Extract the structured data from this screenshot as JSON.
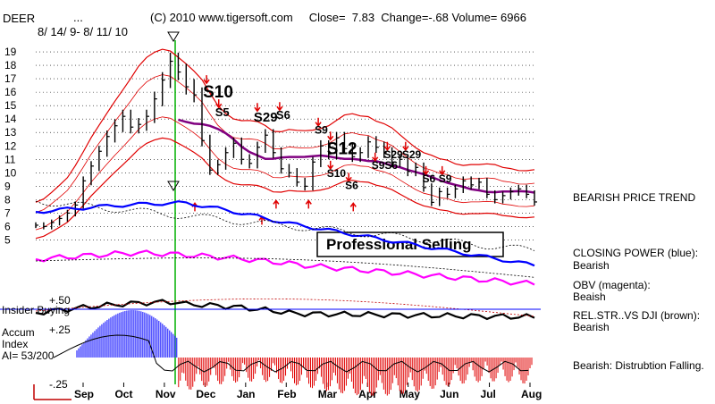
{
  "header": {
    "ticker": "DEER",
    "dots": "...",
    "date_range": "8/ 14/ 9- 8/ 11/ 10",
    "info": "(C) 2010 www.tigersoft.com     Close=  7.83  Change=-.68 Volume= 6966"
  },
  "chart_data": {
    "type": "candlestick",
    "price_axis": {
      "ticks": [
        5,
        6,
        7,
        8,
        9,
        10,
        11,
        12,
        13,
        14,
        15,
        16,
        17,
        18,
        19
      ],
      "ylim": [
        4.5,
        19.8
      ]
    },
    "x_ticks": [
      "Sep",
      "Oct",
      "Nov",
      "Dec",
      "Jan",
      "Feb",
      "Mar",
      "Apr",
      "May",
      "Jun",
      "Jul",
      "Aug"
    ],
    "close_series": [
      6.1,
      6.0,
      6.3,
      6.6,
      7.0,
      7.6,
      9.4,
      10.5,
      11.6,
      12.7,
      13.5,
      14.2,
      13.4,
      13.6,
      14.2,
      15.5,
      16.9,
      18.3,
      17.5,
      16.4,
      15.8,
      12.4,
      10.2,
      10.6,
      11.5,
      12.2,
      11.0,
      10.7,
      11.9,
      12.8,
      11.5,
      10.3,
      10.0,
      9.3,
      9.0,
      10.8,
      12.0,
      11.4,
      12.6,
      11.8,
      11.2,
      11.5,
      12.3,
      11.9,
      11.5,
      10.8,
      11.0,
      10.1,
      10.4,
      8.9,
      7.8,
      8.6,
      8.4,
      8.8,
      9.4,
      9.1,
      9.3,
      8.4,
      8.0,
      8.3,
      8.6,
      8.8,
      8.4,
      7.83
    ],
    "signals": [
      {
        "label": "S10",
        "month_pos": 2.95,
        "price": 15.6,
        "size": 19
      },
      {
        "label": "S5",
        "month_pos": 3.25,
        "price": 14.2,
        "size": 13
      },
      {
        "label": "S29",
        "month_pos": 4.2,
        "price": 13.8,
        "size": 15
      },
      {
        "label": "S6",
        "month_pos": 4.75,
        "price": 14.0,
        "size": 13
      },
      {
        "label": "S9",
        "month_pos": 5.7,
        "price": 12.9,
        "size": 12
      },
      {
        "label": "S12",
        "month_pos": 6.0,
        "price": 11.4,
        "size": 19
      },
      {
        "label": "S10",
        "month_pos": 6.0,
        "price": 9.7,
        "size": 12
      },
      {
        "label": "S6",
        "month_pos": 6.45,
        "price": 8.8,
        "size": 12
      },
      {
        "label": "S29",
        "month_pos": 7.4,
        "price": 11.1,
        "size": 12
      },
      {
        "label": "S9S6",
        "month_pos": 7.1,
        "price": 10.3,
        "size": 12
      },
      {
        "label": "S29",
        "month_pos": 7.85,
        "price": 11.1,
        "size": 12
      },
      {
        "label": "S6",
        "month_pos": 8.35,
        "price": 9.3,
        "size": 12
      },
      {
        "label": "S9",
        "month_pos": 8.75,
        "price": 9.3,
        "size": 12
      }
    ],
    "panels": {
      "insider_buying": "Insider Buying",
      "plus50": "+.50",
      "plus25": "+.25",
      "minus25": "-.25",
      "accum_index": [
        "Accum",
        "Index",
        "AI= 53/200"
      ]
    },
    "annotation": "Professional Selling",
    "legend": [
      {
        "text": "BEARISH PRICE TREND"
      },
      {
        "text": "CLOSING POWER (blue):",
        "sub": "Bearish",
        "color": "#0000ff"
      },
      {
        "text": "OBV (magenta):",
        "sub": "Beaish",
        "color": "#ff00ff"
      },
      {
        "text": "REL.STR..VS DJI (brown):",
        "sub": "Bearish",
        "color": "#402000"
      },
      {
        "text": "Bearish: Distrubtion Falling."
      }
    ]
  }
}
